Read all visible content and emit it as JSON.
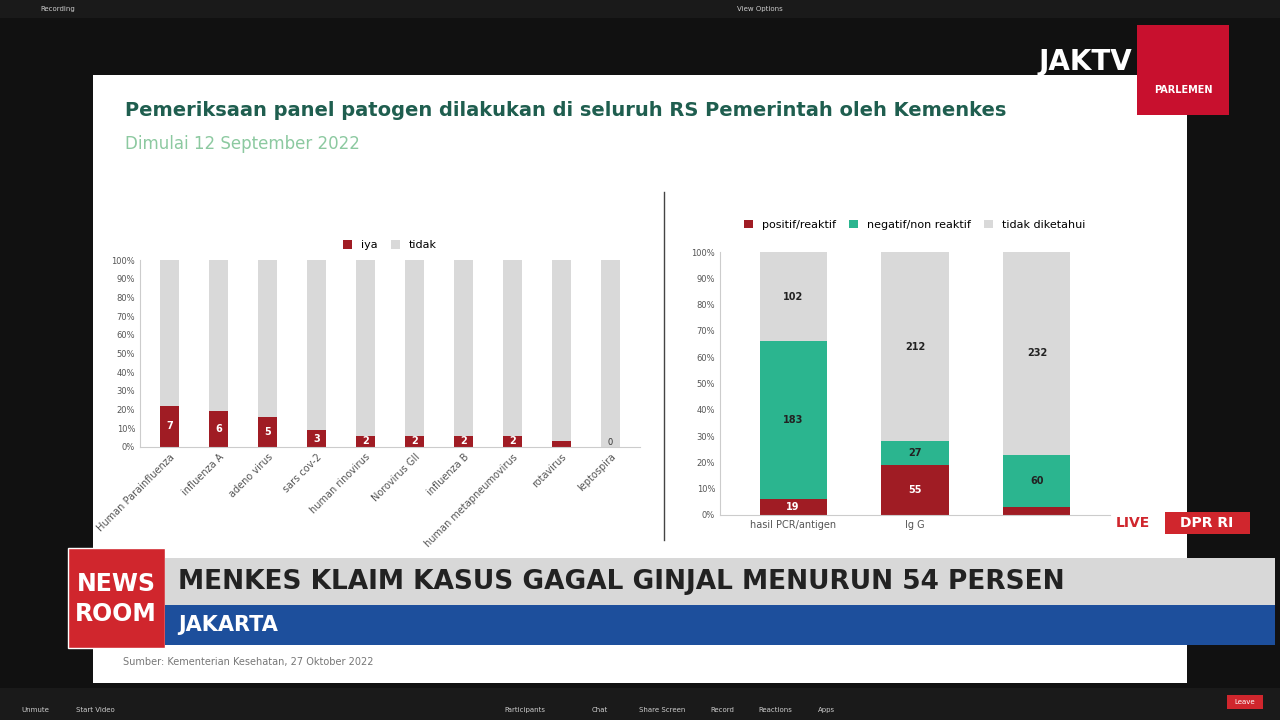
{
  "slide": {
    "title": "Pemeriksaan panel patogen dilakukan di seluruh RS Pemerintah oleh Kemenkes",
    "subtitle": "Dimulai 12 September 2022",
    "source": "Sumber: Kementerian Kesehatan, 27 Oktober 2022"
  },
  "chart_data": [
    {
      "type": "bar",
      "stacked": true,
      "legend": "upper center",
      "grid": false,
      "categories": [
        "Human Parainfluenza",
        "influenza A",
        "adeno virus",
        "sars cov-2",
        "human rinovirus",
        "Norovirus GII",
        "influenza B",
        "human metapneumovirus",
        "rotavirus",
        "leptospira"
      ],
      "series": [
        {
          "name": "iya",
          "color": "#a01c24",
          "values": [
            22,
            19,
            16,
            9,
            6,
            6,
            6,
            6,
            3,
            0
          ],
          "counts": [
            7,
            6,
            5,
            3,
            2,
            2,
            2,
            2,
            null,
            0
          ]
        },
        {
          "name": "tidak",
          "color": "#d9d9d9",
          "values": [
            78,
            81,
            84,
            91,
            94,
            94,
            94,
            94,
            97,
            100
          ]
        }
      ],
      "ylim": [
        0,
        100
      ],
      "yticks": [
        {
          "value": 0,
          "label": "0%"
        },
        {
          "value": 10,
          "label": "10%"
        },
        {
          "value": 20,
          "label": "20%"
        },
        {
          "value": 30,
          "label": "30%"
        },
        {
          "value": 40,
          "label": "40%"
        },
        {
          "value": 50,
          "label": "50%"
        },
        {
          "value": 60,
          "label": "60%"
        },
        {
          "value": 70,
          "label": "70%"
        },
        {
          "value": 80,
          "label": "80%"
        },
        {
          "value": 90,
          "label": "90%"
        },
        {
          "value": 100,
          "label": "100%"
        }
      ]
    },
    {
      "type": "bar",
      "stacked": true,
      "legend": "upper center",
      "grid": false,
      "categories": [
        "hasil PCR/antigen",
        "Ig G",
        null
      ],
      "series": [
        {
          "name": "positif/reaktif",
          "color": "#a01c24",
          "values": [
            6,
            19,
            3
          ],
          "counts": [
            19,
            55,
            null
          ]
        },
        {
          "name": "negatif/non reaktif",
          "color": "#2bb58f",
          "values": [
            60,
            9,
            20
          ],
          "counts": [
            183,
            27,
            60
          ]
        },
        {
          "name": "tidak diketahui",
          "color": "#d9d9d9",
          "values": [
            34,
            72,
            77
          ],
          "counts": [
            102,
            212,
            232
          ]
        }
      ],
      "ylim": [
        0,
        100
      ],
      "yticks": [
        {
          "value": 0,
          "label": "0%"
        },
        {
          "value": 10,
          "label": "10%"
        },
        {
          "value": 20,
          "label": "20%"
        },
        {
          "value": 30,
          "label": "30%"
        },
        {
          "value": 40,
          "label": "40%"
        },
        {
          "value": 50,
          "label": "50%"
        },
        {
          "value": 60,
          "label": "60%"
        },
        {
          "value": 70,
          "label": "70%"
        },
        {
          "value": 80,
          "label": "80%"
        },
        {
          "value": 90,
          "label": "90%"
        },
        {
          "value": 100,
          "label": "100%"
        }
      ]
    }
  ],
  "broadcast": {
    "channel": "JAKTV",
    "channel_sub": "PARLEMEN",
    "segment": [
      "NEWS",
      "ROOM"
    ],
    "headline": "MENKES KLAIM KASUS GAGAL GINJAL MENURUN 54 PERSEN",
    "location": "JAKARTA",
    "live": "LIVE",
    "stream": "DPR RI"
  },
  "zoom": {
    "top": [
      "Recording",
      "View Options"
    ],
    "toolbar": [
      "Unmute",
      "Start Video",
      "Participants",
      "Chat",
      "Share Screen",
      "Record",
      "Reactions",
      "Apps",
      "Leave"
    ]
  }
}
